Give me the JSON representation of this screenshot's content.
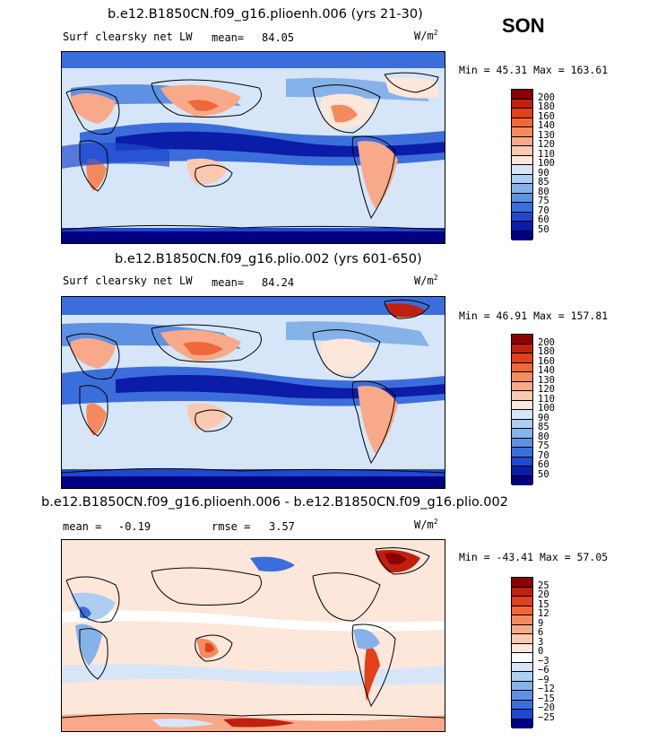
{
  "season": "SON",
  "units": {
    "base": "W/m",
    "exp": "2"
  },
  "panels": [
    {
      "title": "b.e12.B1850CN.f09_g16.plioenh.006 (yrs 21-30)",
      "variable": "Surf clearsky net LW",
      "mean_label": "mean=",
      "mean_value": "84.05",
      "minmax": "Min =  45.31 Max = 163.61",
      "levels": [
        "200",
        "180",
        "160",
        "140",
        "130",
        "120",
        "110",
        "100",
        "90",
        "85",
        "80",
        "75",
        "70",
        "60",
        "50"
      ],
      "colors": [
        "#8b0000",
        "#c1200f",
        "#e0411b",
        "#f0673a",
        "#f48a5e",
        "#f8a98a",
        "#fbc8b2",
        "#fde6da",
        "#d6e6f8",
        "#aecdf1",
        "#86b2ea",
        "#5e91e3",
        "#3c6edb",
        "#1f47d0",
        "#0a1ca8",
        "#000080"
      ]
    },
    {
      "title": "b.e12.B1850CN.f09_g16.plio.002 (yrs 601-650)",
      "variable": "Surf clearsky net LW",
      "mean_label": "mean=",
      "mean_value": "84.24",
      "minmax": "Min =  46.91 Max = 157.81",
      "levels": [
        "200",
        "180",
        "160",
        "140",
        "130",
        "120",
        "110",
        "100",
        "90",
        "85",
        "80",
        "75",
        "70",
        "60",
        "50"
      ],
      "colors": [
        "#8b0000",
        "#c1200f",
        "#e0411b",
        "#f0673a",
        "#f48a5e",
        "#f8a98a",
        "#fbc8b2",
        "#fde6da",
        "#d6e6f8",
        "#aecdf1",
        "#86b2ea",
        "#5e91e3",
        "#3c6edb",
        "#1f47d0",
        "#0a1ca8",
        "#000080"
      ]
    },
    {
      "title": "b.e12.B1850CN.f09_g16.plioenh.006 - b.e12.B1850CN.f09_g16.plio.002",
      "mean_label": "mean =",
      "mean_value": "-0.19",
      "rmse_label": "rmse =",
      "rmse_value": "3.57",
      "minmax": "Min = -43.41 Max =  57.05",
      "levels": [
        "25",
        "20",
        "15",
        "12",
        "9",
        "6",
        "3",
        "0",
        "−3",
        "−6",
        "−9",
        "−12",
        "−15",
        "−20",
        "−25"
      ],
      "colors": [
        "#8b0000",
        "#c1200f",
        "#e0411b",
        "#f0673a",
        "#f48a5e",
        "#f8a98a",
        "#fbc8b2",
        "#fde6da",
        "#ffffff",
        "#d6e6f8",
        "#aecdf1",
        "#86b2ea",
        "#5e91e3",
        "#3c6edb",
        "#1f47d0",
        "#000080"
      ]
    }
  ]
}
